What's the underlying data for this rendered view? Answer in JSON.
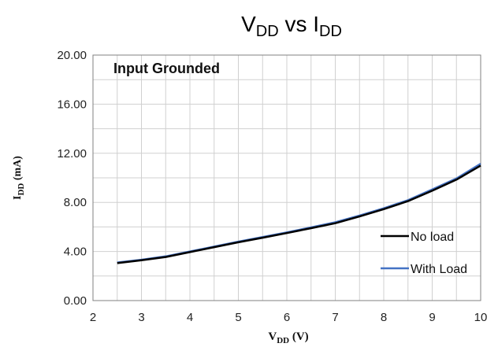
{
  "chart_data": {
    "type": "line",
    "title": {
      "main": "V",
      "sub1": "DD",
      "mid": " vs I",
      "sub2": "DD"
    },
    "ylabel": {
      "main": "I",
      "sub": "DD",
      "rest": " (mA)"
    },
    "xlabel": {
      "main": "V",
      "sub": "DD",
      "rest": " (V)"
    },
    "annotation": "Input Grounded",
    "xlim": [
      2,
      10
    ],
    "ylim": [
      0,
      20
    ],
    "xticks": [
      "2",
      "3",
      "4",
      "5",
      "6",
      "7",
      "8",
      "9",
      "10"
    ],
    "yticks": [
      "0.00",
      "4.00",
      "8.00",
      "12.00",
      "16.00",
      "20.00"
    ],
    "grid": true,
    "legend_position": "bottom-right",
    "series": [
      {
        "name": "No load",
        "color": "#000000",
        "x": [
          2.5,
          3.0,
          3.5,
          4.0,
          4.5,
          5.0,
          5.5,
          6.0,
          6.5,
          7.0,
          7.5,
          8.0,
          8.5,
          9.0,
          9.5,
          10.0
        ],
        "y": [
          3.05,
          3.28,
          3.55,
          3.95,
          4.35,
          4.75,
          5.12,
          5.5,
          5.9,
          6.3,
          6.85,
          7.45,
          8.1,
          8.95,
          9.85,
          11.0
        ]
      },
      {
        "name": "With Load",
        "color": "#4472C4",
        "x": [
          2.5,
          3.0,
          3.5,
          4.0,
          4.5,
          5.0,
          5.5,
          6.0,
          6.5,
          7.0,
          7.5,
          8.0,
          8.5,
          9.0,
          9.5,
          10.0
        ],
        "y": [
          3.1,
          3.33,
          3.6,
          4.0,
          4.4,
          4.8,
          5.18,
          5.56,
          5.96,
          6.38,
          6.92,
          7.52,
          8.18,
          9.05,
          9.95,
          11.15
        ]
      }
    ]
  }
}
